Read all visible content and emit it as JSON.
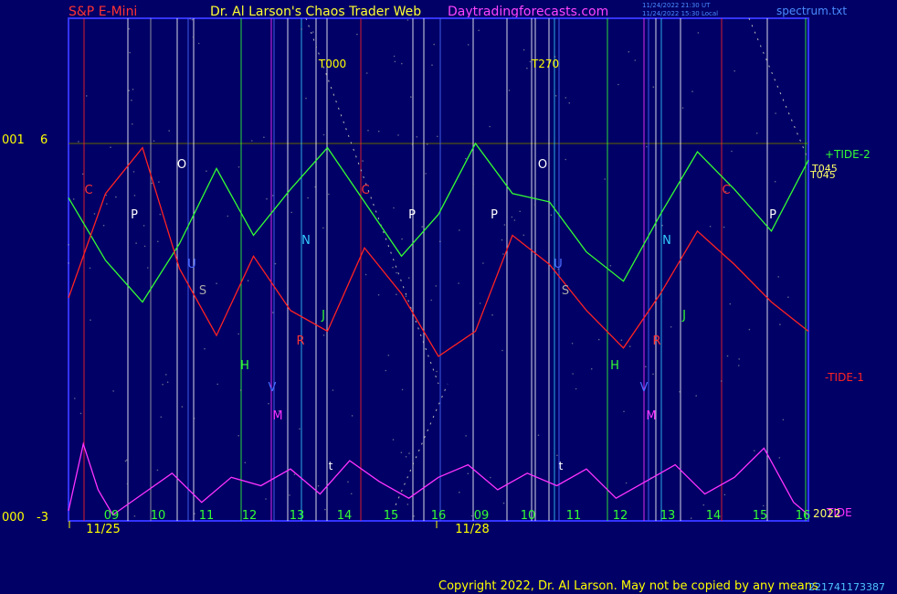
{
  "header": {
    "left_title": "S&P E-Mini",
    "center_title": "Dr. Al Larson's Chaos Trader Web",
    "site": "Daytradingforecasts.com",
    "timestamp_utc": "11/24/2022 21:30 UT",
    "timestamp_local": "11/24/2022 15:30 Local",
    "spectrum_file": "spectrum.txt"
  },
  "footer": {
    "copyright": "Copyright 2022, Dr. Al Larson. May not be copied by any means",
    "serial": "221741173387"
  },
  "colors": {
    "background": "#000066",
    "frame": "#3333ff",
    "tide2": "#33ff33",
    "tide1": "#ff2222",
    "tide": "#ff33ff",
    "text_yellow": "#ffff00"
  },
  "chart_data": {
    "type": "line",
    "y_labels": {
      "top_left": "001",
      "top_right": "6",
      "bottom_left": "000",
      "bottom_right": "-3"
    },
    "x_hour_labels": [
      "09",
      "10",
      "11",
      "12",
      "13",
      "14",
      "15",
      "16",
      "09",
      "10",
      "11",
      "12",
      "13",
      "14",
      "15",
      "16"
    ],
    "x_date_labels": [
      "11/25",
      "11/28"
    ],
    "series": [
      {
        "name": "+TIDE-2",
        "color": "#33ff33",
        "x": [
          0,
          5,
          10,
          15,
          20,
          25,
          30,
          35,
          40,
          45,
          50,
          55,
          60,
          65,
          70,
          75,
          80,
          85,
          90,
          95,
          100
        ],
        "y": [
          4.7,
          3.2,
          2.2,
          3.6,
          5.4,
          3.8,
          4.9,
          5.9,
          4.6,
          3.3,
          4.3,
          6.0,
          4.8,
          4.6,
          3.4,
          2.7,
          4.3,
          5.8,
          4.9,
          3.9,
          5.6
        ]
      },
      {
        "name": "-TIDE-1",
        "color": "#ff2222",
        "x": [
          0,
          5,
          10,
          15,
          20,
          25,
          30,
          35,
          40,
          45,
          50,
          55,
          60,
          65,
          70,
          75,
          80,
          85,
          90,
          95,
          100
        ],
        "y": [
          2.3,
          4.8,
          5.9,
          3.0,
          1.4,
          3.3,
          2.0,
          1.5,
          3.5,
          2.4,
          0.9,
          1.5,
          3.8,
          3.1,
          2.0,
          1.1,
          2.4,
          3.9,
          3.1,
          2.2,
          1.5
        ]
      },
      {
        "name": "TIDE",
        "color": "#ff33ff",
        "x": [
          0,
          2,
          4,
          6,
          10,
          14,
          18,
          22,
          26,
          30,
          34,
          38,
          42,
          46,
          50,
          54,
          58,
          62,
          66,
          70,
          74,
          78,
          82,
          86,
          90,
          94,
          98,
          100
        ],
        "y": [
          -2.8,
          -1.2,
          -2.3,
          -2.9,
          -2.4,
          -1.9,
          -2.6,
          -2.0,
          -2.2,
          -1.8,
          -2.4,
          -1.6,
          -2.1,
          -2.5,
          -2.0,
          -1.7,
          -2.3,
          -1.9,
          -2.2,
          -1.8,
          -2.5,
          -2.1,
          -1.7,
          -2.4,
          -2.0,
          -1.3,
          -2.6,
          -2.9
        ]
      }
    ],
    "markers": [
      "C",
      "P",
      "O",
      "U",
      "S",
      "H",
      "V",
      "M",
      "N",
      "J",
      "R",
      "C",
      "P",
      "P",
      "O",
      "U",
      "S",
      "H",
      "V",
      "M",
      "N",
      "J",
      "R",
      "C",
      "P"
    ],
    "annotations": [
      "T000",
      "T270",
      "t",
      "t"
    ],
    "legend": {
      "tide2": "+TIDE-2",
      "tide1": "-TIDE-1",
      "tide": "TIDE",
      "t045a": "T045",
      "t045b": "T045",
      "year": "2022"
    }
  }
}
